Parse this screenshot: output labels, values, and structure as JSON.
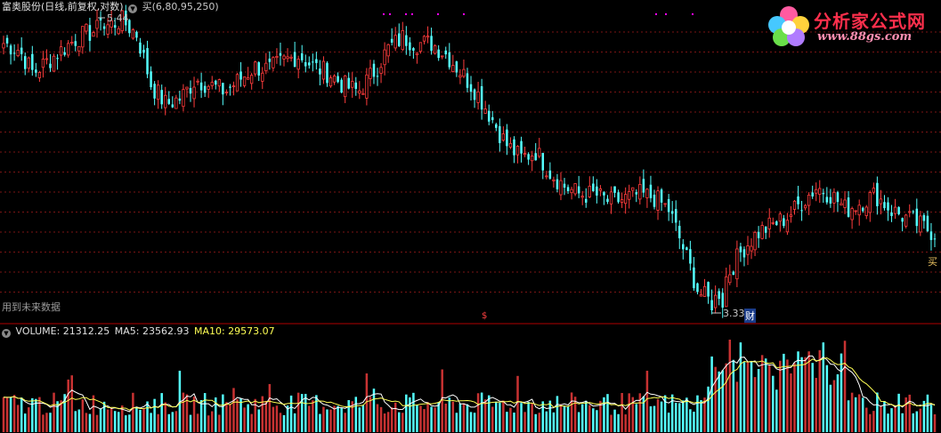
{
  "header": {
    "stock_title": "富奥股份(日线,前复权,对数)",
    "indicator_label": "买(6,80,95,250)"
  },
  "volume_header": {
    "label": "VOLUME: 21312.25",
    "ma5": "MA5: 23562.93",
    "ma10": "MA10: 29573.07"
  },
  "annotations": {
    "high_label": "5.44",
    "low_label": "3.33",
    "future_data_note": "用到未来数据",
    "buy_marker": "买",
    "finance_marker": "财",
    "dollar_marker": "$"
  },
  "logo": {
    "title": "分析家公式网",
    "url": "www.88gs.com"
  },
  "colors": {
    "up": "#ff3c3c",
    "down": "#54ffff",
    "ma5_line": "#ffffff",
    "ma10_line": "#ffff54",
    "grid": "#7a1414",
    "marker": "#ff00ff",
    "separator": "#b00000"
  },
  "chart_data": [
    {
      "type": "candlestick",
      "title": "富奥股份(日线,前复权,对数)",
      "scale": "log",
      "ylim": [
        3.33,
        5.44
      ],
      "price_extremes": {
        "high": 5.44,
        "low": 3.33
      },
      "grid": "horizontal dashed",
      "close_path_approx": [
        5.2,
        5.15,
        4.95,
        5.05,
        5.15,
        5.25,
        5.3,
        5.35,
        5.4,
        5.28,
        4.85,
        4.7,
        4.75,
        4.9,
        4.85,
        4.8,
        4.9,
        5.0,
        4.98,
        5.05,
        5.1,
        5.0,
        4.95,
        4.85,
        4.8,
        4.95,
        5.15,
        5.25,
        5.2,
        5.2,
        5.1,
        4.95,
        4.8,
        4.6,
        4.4,
        4.3,
        4.35,
        4.2,
        4.1,
        4.05,
        4.05,
        4.0,
        4.02,
        4.05,
        4.03,
        3.95,
        3.7,
        3.45,
        3.38,
        3.55,
        3.7,
        3.8,
        3.85,
        3.9,
        4.0,
        4.1,
        4.05,
        3.95,
        4.0,
        4.05,
        3.95,
        3.9,
        3.85,
        3.8
      ]
    },
    {
      "type": "bar",
      "title": "VOLUME",
      "series": [
        {
          "name": "VOLUME",
          "last": 21312.25
        },
        {
          "name": "MA5",
          "last": 23562.93
        },
        {
          "name": "MA10",
          "last": 29573.07
        }
      ]
    }
  ]
}
